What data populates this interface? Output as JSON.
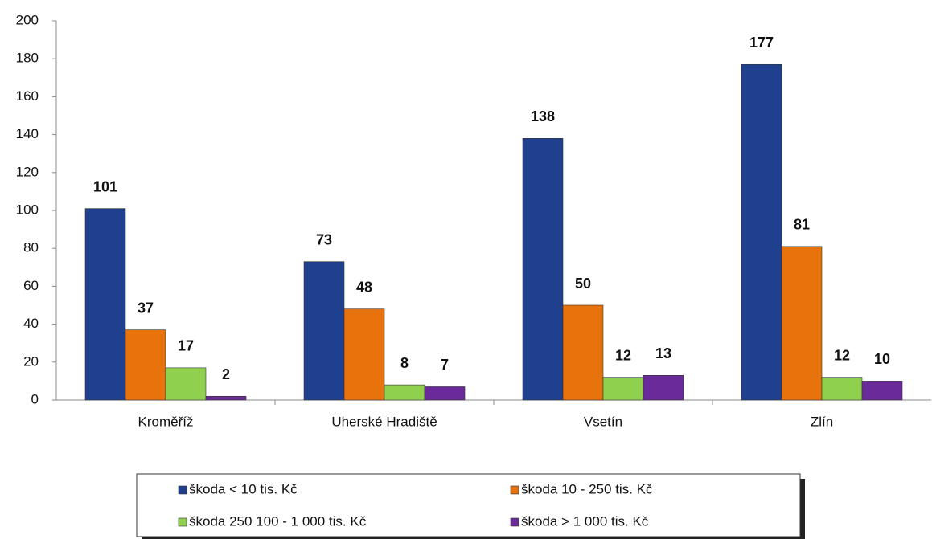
{
  "chart_data": {
    "type": "bar",
    "categories": [
      "Kroměříž",
      "Uherské Hradiště",
      "Vsetín",
      "Zlín"
    ],
    "series": [
      {
        "name": "škoda < 10 tis. Kč",
        "color": "#1f3f8f",
        "values": [
          101,
          73,
          138,
          177
        ]
      },
      {
        "name": "škoda 10 - 250 tis. Kč",
        "color": "#e8720c",
        "values": [
          37,
          48,
          50,
          81
        ]
      },
      {
        "name": "škoda 250 100 - 1 000 tis. Kč",
        "color": "#8fd14f",
        "values": [
          17,
          8,
          12,
          12
        ]
      },
      {
        "name": "škoda > 1 000 tis. Kč",
        "color": "#6a2a9a",
        "values": [
          2,
          7,
          13,
          10
        ]
      }
    ],
    "ylim": [
      0,
      200
    ],
    "yticks": [
      0,
      20,
      40,
      60,
      80,
      100,
      120,
      140,
      160,
      180,
      200
    ],
    "grid": false,
    "legend": "bottom"
  }
}
